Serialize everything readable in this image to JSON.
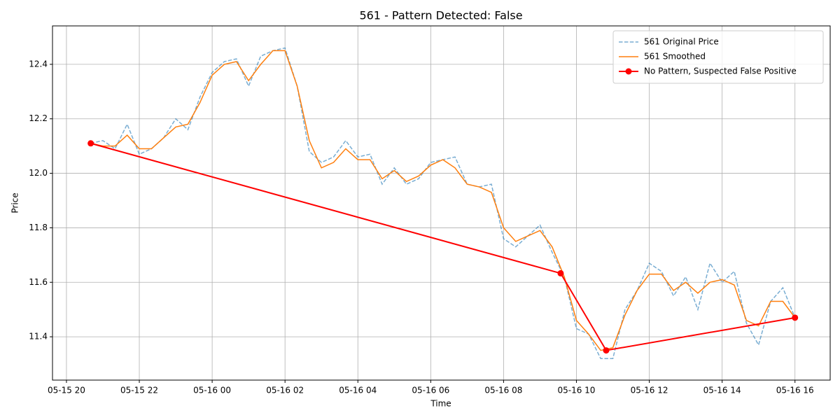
{
  "chart_data": {
    "type": "line",
    "title": "561 - Pattern Detected: False",
    "x_label": "Time",
    "y_label": "Price",
    "grid": true,
    "legend": "upper right",
    "xlim": [
      "05-15 19:37",
      "05-16 16:58"
    ],
    "ylim": [
      11.241,
      12.541
    ],
    "xticks": [
      "05-15 20",
      "05-15 22",
      "05-16 00",
      "05-16 02",
      "05-16 04",
      "05-16 06",
      "05-16 08",
      "05-16 10",
      "05-16 12",
      "05-16 14",
      "05-16 16"
    ],
    "yticks": [
      11.4,
      11.6,
      11.8,
      {
        "value": 12,
        "label": "12.0"
      },
      12.2,
      12.4
    ],
    "x": [
      "05-15 20:40",
      "05-15 21:00",
      "05-15 21:20",
      "05-15 21:40",
      "05-15 22:00",
      "05-15 22:20",
      "05-15 22:40",
      "05-15 23:00",
      "05-15 23:20",
      "05-15 23:40",
      "05-16 00:00",
      "05-16 00:20",
      "05-16 00:40",
      "05-16 01:00",
      "05-16 01:20",
      "05-16 01:40",
      "05-16 02:00",
      "05-16 02:20",
      "05-16 02:40",
      "05-16 03:00",
      "05-16 03:20",
      "05-16 03:40",
      "05-16 04:00",
      "05-16 04:20",
      "05-16 04:40",
      "05-16 05:00",
      "05-16 05:20",
      "05-16 05:40",
      "05-16 06:00",
      "05-16 06:20",
      "05-16 06:40",
      "05-16 07:00",
      "05-16 07:20",
      "05-16 07:40",
      "05-16 08:00",
      "05-16 08:20",
      "05-16 08:40",
      "05-16 09:00",
      "05-16 09:20",
      "05-16 09:40",
      "05-16 10:00",
      "05-16 10:20",
      "05-16 10:40",
      "05-16 11:00",
      "05-16 11:20",
      "05-16 11:40",
      "05-16 12:00",
      "05-16 12:20",
      "05-16 12:40",
      "05-16 13:00",
      "05-16 13:20",
      "05-16 13:40",
      "05-16 14:00",
      "05-16 14:20",
      "05-16 14:40",
      "05-16 15:00",
      "05-16 15:20",
      "05-16 15:40",
      "05-16 16:00"
    ],
    "series": [
      {
        "name": "561 Original Price",
        "color": "#1f77b4",
        "opacity": 0.6,
        "dash": true,
        "marker": false,
        "values": [
          12.11,
          12.12,
          12.09,
          12.18,
          12.07,
          12.09,
          12.13,
          12.2,
          12.16,
          12.28,
          12.37,
          12.41,
          12.42,
          12.32,
          12.43,
          12.45,
          12.46,
          12.32,
          12.08,
          12.04,
          12.06,
          12.12,
          12.06,
          12.07,
          11.96,
          12.02,
          11.96,
          11.98,
          12.04,
          12.05,
          12.06,
          11.96,
          11.95,
          11.96,
          11.76,
          11.73,
          11.77,
          11.81,
          11.71,
          11.62,
          11.43,
          11.41,
          11.32,
          11.32,
          11.5,
          11.57,
          11.67,
          11.64,
          11.55,
          11.62,
          11.5,
          11.67,
          11.6,
          11.64,
          11.45,
          11.37,
          11.53,
          11.58,
          11.47
        ]
      },
      {
        "name": "561 Smoothed",
        "color": "#ff7f0e",
        "opacity": 1,
        "dash": false,
        "marker": false,
        "values": [
          12.11,
          12.1,
          12.1,
          12.14,
          12.09,
          12.09,
          12.13,
          12.17,
          12.18,
          12.26,
          12.36,
          12.4,
          12.41,
          12.34,
          12.4,
          12.45,
          12.45,
          12.32,
          12.12,
          12.02,
          12.04,
          12.09,
          12.05,
          12.05,
          11.98,
          12.01,
          11.97,
          11.99,
          12.03,
          12.05,
          12.02,
          11.96,
          11.95,
          11.93,
          11.8,
          11.75,
          11.77,
          11.79,
          11.73,
          11.62,
          11.46,
          11.41,
          11.35,
          11.36,
          11.48,
          11.57,
          11.63,
          11.63,
          11.57,
          11.6,
          11.56,
          11.6,
          11.61,
          11.59,
          11.46,
          11.44,
          11.53,
          11.53,
          11.47
        ]
      },
      {
        "name": "No Pattern, Suspected False Positive",
        "color": "#ff0000",
        "opacity": 1,
        "dash": false,
        "marker": true,
        "x": [
          "05-15 20:40",
          "05-16 09:34",
          "05-16 10:49",
          "05-16 16:00"
        ],
        "values": [
          12.11,
          11.633,
          11.35,
          11.47
        ]
      }
    ]
  }
}
